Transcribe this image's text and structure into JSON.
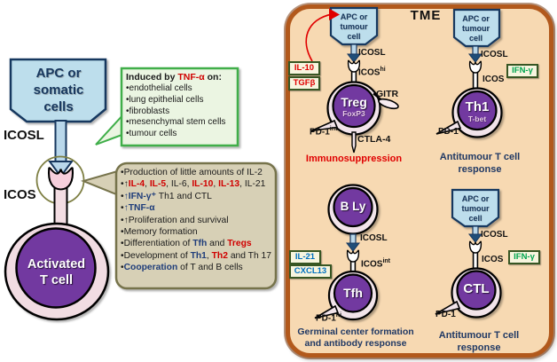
{
  "left": {
    "apc_lines": [
      "APC or",
      "somatic",
      "cells"
    ],
    "icosl": "ICOSL",
    "icos": "ICOS",
    "tcell_lines": [
      "Activated",
      "T cell"
    ],
    "green_box": {
      "title": [
        {
          "t": "Induced by ",
          "c": "k"
        },
        {
          "t": "TNF-α",
          "c": "rb"
        },
        {
          "t": " on:",
          "c": "k"
        }
      ],
      "items": [
        "•endothelial cells",
        "•lung epithelial cells",
        "•fibroblasts",
        "•mesenchymal stem cells",
        "•tumour cells"
      ]
    },
    "tan_box": {
      "lines": [
        {
          "wrap": false,
          "segs": [
            {
              "t": "•Production of little amounts of IL-2",
              "c": "k"
            }
          ]
        },
        {
          "wrap": false,
          "segs": [
            {
              "t": "•↑",
              "c": "k"
            },
            {
              "t": "IL-4",
              "c": "rb"
            },
            {
              "t": ", ",
              "c": "k"
            },
            {
              "t": "IL-5",
              "c": "rb"
            },
            {
              "t": ", IL-6, ",
              "c": "k"
            },
            {
              "t": "IL-10",
              "c": "rb"
            },
            {
              "t": ", ",
              "c": "k"
            },
            {
              "t": "IL-13",
              "c": "rb"
            },
            {
              "t": ", IL-21",
              "c": "k"
            }
          ]
        },
        {
          "wrap": false,
          "segs": [
            {
              "t": "•",
              "c": "k"
            },
            {
              "t": "↑IFN-γ⁺",
              "c": "bb"
            },
            {
              "t": " Th1 and CTL",
              "c": "k"
            }
          ]
        },
        {
          "wrap": false,
          "segs": [
            {
              "t": "•",
              "c": "k"
            },
            {
              "t": "↑TNF-α",
              "c": "bb"
            }
          ]
        },
        {
          "wrap": false,
          "segs": [
            {
              "t": "•↑Proliferation and survival",
              "c": "k"
            }
          ]
        },
        {
          "wrap": false,
          "segs": [
            {
              "t": "•Memory formation",
              "c": "k"
            }
          ]
        },
        {
          "wrap": false,
          "segs": [
            {
              "t": "•Differentiation of ",
              "c": "k"
            },
            {
              "t": "Tfh",
              "c": "bb"
            },
            {
              "t": " and ",
              "c": "k"
            },
            {
              "t": "Tregs",
              "c": "rb"
            }
          ]
        },
        {
          "wrap": true,
          "segs": [
            {
              "t": "•Development of ",
              "c": "k"
            },
            {
              "t": "Th1",
              "c": "bb"
            },
            {
              "t": ", ",
              "c": "k"
            },
            {
              "t": "Th2",
              "c": "rb"
            },
            {
              "t": " and Th 17",
              "c": "k"
            }
          ]
        },
        {
          "wrap": false,
          "segs": [
            {
              "t": "•",
              "c": "k"
            },
            {
              "t": "Cooperation",
              "c": "bb"
            },
            {
              "t": " of T and B cells",
              "c": "k"
            }
          ]
        }
      ]
    }
  },
  "tme": {
    "title": "TME",
    "treg": {
      "apc_lines": [
        "APC or",
        "tumour",
        "cell"
      ],
      "icosl": "ICOSL",
      "icos": "ICOS",
      "icos_sup": "hi",
      "cytokine1": "IL-10",
      "cytokine2": "TGFβ",
      "cell": "Treg",
      "cell_sub": "FoxP3",
      "gitr": "GITR",
      "ctla4": "CTLA-4",
      "pd1": "PD-1",
      "pd1_sup": "int",
      "caption": "Immunosuppression"
    },
    "th1": {
      "apc_lines": [
        "APC or",
        "tumour",
        "cell"
      ],
      "icosl": "ICOSL",
      "icos": "ICOS",
      "cytokine": "IFN-γ",
      "cell": "Th1",
      "cell_sub": "T-bet",
      "pd1": "PD-1",
      "caption_lines": [
        "Antitumour T cell",
        "response"
      ]
    },
    "tfh": {
      "bcell": "B Ly",
      "icosl": "ICOSL",
      "icos": "ICOS",
      "icos_sup": "int",
      "cytokine1": "IL-21",
      "cytokine2": "CXCL13",
      "cell": "Tfh",
      "pd1": "PD-1",
      "pd1_sup": "hi",
      "caption_lines": [
        "Germinal center formation",
        "and antibody response"
      ]
    },
    "ctl": {
      "apc_lines": [
        "APC or",
        "tumour",
        "cell"
      ],
      "icosl": "ICOSL",
      "icos": "ICOS",
      "cytokine": "IFN-γ",
      "cell": "CTL",
      "pd1": "PD-1",
      "caption_lines": [
        "Antitumour T cell",
        "response"
      ]
    }
  },
  "colors": {
    "panel_bg": "#F7D9B2",
    "panel_border": "#B2591C",
    "cell_purple": "#7239A0",
    "cell_ring": "#F2E4EA",
    "apc_blue": "#BDDEEC",
    "navy": "#17375E",
    "green_box": "#3FAE49",
    "tan_box": "#D7D0B6",
    "red": "#E00000",
    "cyto_green": "#00A550",
    "cyto_blue": "#0070C0"
  }
}
